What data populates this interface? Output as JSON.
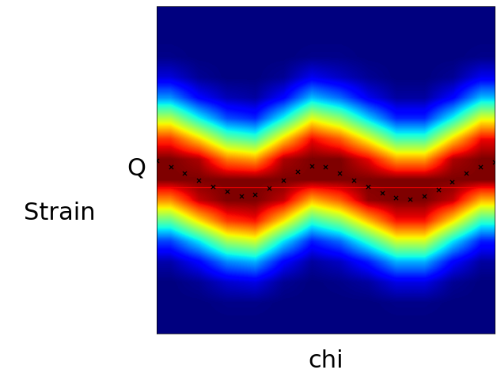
{
  "chart_data": {
    "type": "heatmap",
    "x_label": "chi",
    "annotations": [
      "Q",
      "Strain"
    ],
    "xlim": [
      0,
      12
    ],
    "ylim": [
      16,
      0
    ],
    "tick_labels": false,
    "color_range": [
      0,
      1
    ],
    "cells": [
      [
        0,
        0,
        0,
        0,
        0,
        0,
        0,
        0,
        0,
        0,
        0,
        0
      ],
      [
        0,
        0,
        0,
        0,
        0,
        0,
        0,
        0,
        0,
        0,
        0,
        0
      ],
      [
        0.01,
        0,
        0,
        0,
        0,
        0.01,
        0.01,
        0,
        0,
        0,
        0,
        0.01
      ],
      [
        0.08,
        0.02,
        0,
        0,
        0.02,
        0.1,
        0.06,
        0.02,
        0,
        0,
        0.02,
        0.1
      ],
      [
        0.27,
        0.12,
        0.05,
        0.03,
        0.12,
        0.31,
        0.23,
        0.1,
        0.03,
        0.03,
        0.12,
        0.31
      ],
      [
        0.57,
        0.37,
        0.2,
        0.16,
        0.37,
        0.62,
        0.52,
        0.33,
        0.16,
        0.16,
        0.37,
        0.62
      ],
      [
        0.85,
        0.68,
        0.48,
        0.43,
        0.68,
        0.9,
        0.81,
        0.63,
        0.43,
        0.43,
        0.68,
        0.9
      ],
      [
        1,
        0.96,
        0.78,
        0.74,
        0.96,
        1,
        1,
        0.91,
        0.74,
        0.74,
        0.96,
        1
      ],
      [
        1,
        1,
        1,
        1,
        1,
        1,
        1,
        1,
        1,
        1,
        1,
        1
      ],
      [
        0.76,
        0.94,
        1,
        1,
        0.94,
        0.72,
        0.81,
        0.98,
        1,
        1,
        0.94,
        0.72
      ],
      [
        0.47,
        0.67,
        0.85,
        0.89,
        0.67,
        0.42,
        0.52,
        0.71,
        0.89,
        0.89,
        0.67,
        0.42
      ],
      [
        0.19,
        0.35,
        0.55,
        0.6,
        0.35,
        0.15,
        0.23,
        0.41,
        0.6,
        0.6,
        0.35,
        0.15
      ],
      [
        0.04,
        0.12,
        0.26,
        0.3,
        0.12,
        0.03,
        0.06,
        0.15,
        0.3,
        0.3,
        0.12,
        0.03
      ],
      [
        0,
        0.02,
        0.07,
        0.09,
        0.02,
        0,
        0.01,
        0.03,
        0.09,
        0.09,
        0.02,
        0
      ],
      [
        0,
        0,
        0.01,
        0.01,
        0,
        0,
        0,
        0,
        0.01,
        0.01,
        0,
        0
      ],
      [
        0,
        0,
        0,
        0,
        0,
        0,
        0,
        0,
        0,
        0,
        0,
        0
      ]
    ],
    "series": [
      {
        "type": "scatter",
        "color": "black",
        "marker": "x",
        "x": [
          0,
          0.5,
          1,
          1.5,
          2,
          2.5,
          3,
          3.5,
          4,
          4.5,
          5,
          5.5,
          6,
          6.5,
          7,
          7.5,
          8,
          8.5,
          9,
          9.5,
          10,
          10.5,
          11,
          11.5,
          12
        ],
        "values": [
          7.52,
          7.84,
          8.16,
          8.48,
          8.8,
          9.04,
          9.28,
          9.2,
          8.88,
          8.48,
          8.08,
          7.79,
          7.84,
          8.16,
          8.48,
          8.8,
          9.12,
          9.36,
          9.44,
          9.28,
          8.96,
          8.56,
          8.16,
          7.84,
          7.6
        ]
      },
      {
        "type": "hline",
        "color": "red",
        "line_style": "solid",
        "values": [
          8.85
        ]
      }
    ]
  }
}
